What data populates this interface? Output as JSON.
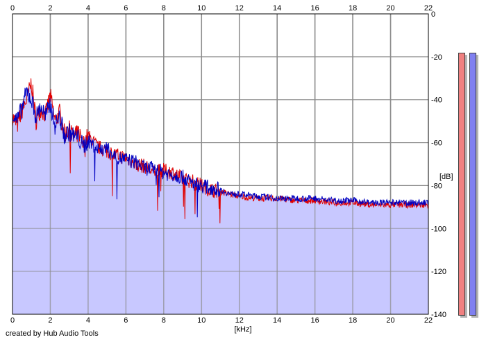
{
  "chart_data": {
    "type": "area",
    "xlabel": "[kHz]",
    "ylabel": "[dB]",
    "xlim": [
      0,
      22
    ],
    "ylim": [
      -140,
      0
    ],
    "x_ticks": [
      0,
      2,
      4,
      6,
      8,
      10,
      12,
      14,
      16,
      18,
      20,
      22
    ],
    "y_ticks": [
      0,
      -20,
      -40,
      -60,
      -80,
      -100,
      -120,
      -140
    ],
    "grid": true,
    "fill_color": "#c8c8ff",
    "series": [
      {
        "color": "#e00000",
        "x": [
          0,
          0.25,
          0.5,
          0.75,
          1,
          1.25,
          1.5,
          1.75,
          2,
          2.25,
          2.5,
          2.75,
          3,
          3.25,
          3.5,
          3.75,
          4,
          4.5,
          5,
          5.5,
          6,
          6.5,
          7,
          7.5,
          8,
          8.5,
          9,
          9.5,
          10,
          10.5,
          11,
          11.5,
          12,
          13,
          14,
          15,
          16,
          17,
          18,
          19,
          20,
          21,
          22
        ],
        "values": [
          -48,
          -52,
          -45,
          -40,
          -32,
          -50,
          -44,
          -47,
          -38,
          -50,
          -46,
          -56,
          -54,
          -58,
          -55,
          -60,
          -57,
          -62,
          -64,
          -66,
          -67,
          -70,
          -71,
          -74,
          -73,
          -74,
          -77,
          -78,
          -80,
          -82,
          -83,
          -84,
          -85,
          -86,
          -86,
          -87,
          -87,
          -88,
          -88,
          -89,
          -89,
          -89,
          -89
        ]
      },
      {
        "color": "#0000c0",
        "x": [
          0,
          0.25,
          0.5,
          0.75,
          1,
          1.25,
          1.5,
          1.75,
          2,
          2.25,
          2.5,
          2.75,
          3,
          3.25,
          3.5,
          3.75,
          4,
          4.5,
          5,
          5.5,
          6,
          6.5,
          7,
          7.5,
          8,
          8.5,
          9,
          9.5,
          10,
          10.5,
          11,
          11.5,
          12,
          13,
          14,
          15,
          16,
          17,
          18,
          19,
          20,
          21,
          22
        ],
        "values": [
          -47,
          -50,
          -44,
          -36,
          -40,
          -48,
          -43,
          -48,
          -42,
          -52,
          -48,
          -57,
          -55,
          -57,
          -58,
          -62,
          -59,
          -63,
          -63,
          -67,
          -68,
          -69,
          -72,
          -72,
          -74,
          -75,
          -76,
          -79,
          -80,
          -81,
          -82,
          -84,
          -84,
          -85,
          -86,
          -86,
          -86,
          -87,
          -87,
          -88,
          -88,
          -88,
          -88
        ]
      }
    ]
  },
  "meters": {
    "left_color": "#f08080",
    "right_color": "#8080f0",
    "top_db": -18
  },
  "credit": "created by Hub Audio Tools"
}
